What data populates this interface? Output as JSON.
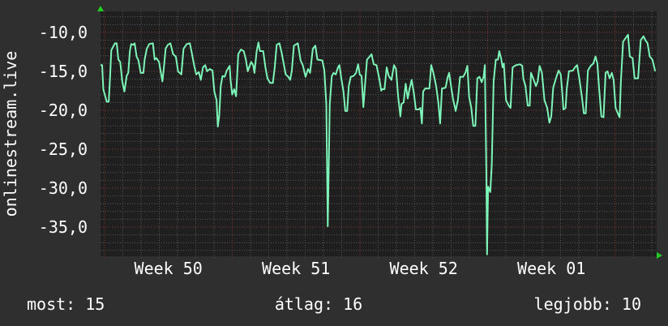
{
  "chart_data": {
    "type": "line",
    "title": "",
    "ylabel": "onlinestream.live",
    "xlabel": "",
    "x_unit": "days since start",
    "xlim": [
      0,
      30.49
    ],
    "ylim": [
      -38.75,
      -7.3
    ],
    "grid": true,
    "y_major_step": 5,
    "y_minor_step": 1,
    "x_week_start": 0.22,
    "yticks": [
      {
        "value": -10,
        "label": "-10,0"
      },
      {
        "value": -15,
        "label": "-15,0"
      },
      {
        "value": -20,
        "label": "-20,0"
      },
      {
        "value": -25,
        "label": "-25,0"
      },
      {
        "value": -30,
        "label": "-30,0"
      },
      {
        "value": -35,
        "label": "-35,0"
      }
    ],
    "xticks": [
      {
        "value": 3.72,
        "label": "Week 50"
      },
      {
        "value": 10.72,
        "label": "Week 51"
      },
      {
        "value": 17.72,
        "label": "Week 52"
      },
      {
        "value": 24.72,
        "label": "Week 01"
      }
    ],
    "colors": {
      "line": "#7ef5b8",
      "plot_bg": "#1f1f1f",
      "page_bg": "#2f2f2f",
      "minor_grid": "#5a5a5a",
      "major_grid": "#8a3a3a",
      "arrow": "#22cc22"
    },
    "series": [
      {
        "name": "onlinestream.live",
        "points": [
          [
            0.0,
            -14.2
          ],
          [
            0.09,
            -14.2
          ],
          [
            0.15,
            -17.3
          ],
          [
            0.27,
            -18.3
          ],
          [
            0.34,
            -18.9
          ],
          [
            0.45,
            -18.9
          ],
          [
            0.52,
            -15.9
          ],
          [
            0.59,
            -12.3
          ],
          [
            0.79,
            -11.4
          ],
          [
            0.89,
            -11.4
          ],
          [
            0.98,
            -13.5
          ],
          [
            1.08,
            -13.8
          ],
          [
            1.19,
            -16.3
          ],
          [
            1.31,
            -17.6
          ],
          [
            1.43,
            -15.6
          ],
          [
            1.52,
            -15.2
          ],
          [
            1.61,
            -12.4
          ],
          [
            1.68,
            -11.5
          ],
          [
            1.8,
            -11.6
          ],
          [
            1.87,
            -11.4
          ],
          [
            1.98,
            -13.1
          ],
          [
            2.08,
            -13.6
          ],
          [
            2.2,
            -15.2
          ],
          [
            2.35,
            -15.2
          ],
          [
            2.42,
            -13.5
          ],
          [
            2.54,
            -12.1
          ],
          [
            2.67,
            -11.5
          ],
          [
            2.87,
            -11.4
          ],
          [
            2.97,
            -13.5
          ],
          [
            3.06,
            -13.3
          ],
          [
            3.21,
            -13.8
          ],
          [
            3.31,
            -15.2
          ],
          [
            3.39,
            -16.3
          ],
          [
            3.46,
            -14.9
          ],
          [
            3.57,
            -12.1
          ],
          [
            3.69,
            -11.6
          ],
          [
            3.83,
            -11.4
          ],
          [
            3.98,
            -12.8
          ],
          [
            4.13,
            -13.1
          ],
          [
            4.25,
            -15.0
          ],
          [
            4.43,
            -15.4
          ],
          [
            4.55,
            -12.1
          ],
          [
            4.73,
            -11.5
          ],
          [
            4.9,
            -11.4
          ],
          [
            5.02,
            -12.8
          ],
          [
            5.13,
            -14.2
          ],
          [
            5.25,
            -15.4
          ],
          [
            5.39,
            -15.1
          ],
          [
            5.5,
            -16.1
          ],
          [
            5.62,
            -14.5
          ],
          [
            5.74,
            -14.2
          ],
          [
            5.84,
            -15.0
          ],
          [
            5.99,
            -14.7
          ],
          [
            6.14,
            -14.9
          ],
          [
            6.24,
            -17.6
          ],
          [
            6.36,
            -18.7
          ],
          [
            6.43,
            -22.1
          ],
          [
            6.51,
            -20.6
          ],
          [
            6.59,
            -16.9
          ],
          [
            6.69,
            -15.6
          ],
          [
            6.81,
            -15.7
          ],
          [
            6.92,
            -14.9
          ],
          [
            7.08,
            -14.3
          ],
          [
            7.13,
            -16.1
          ],
          [
            7.22,
            -18.0
          ],
          [
            7.33,
            -17.3
          ],
          [
            7.43,
            -18.2
          ],
          [
            7.55,
            -12.8
          ],
          [
            7.7,
            -12.2
          ],
          [
            7.85,
            -12.4
          ],
          [
            7.97,
            -13.5
          ],
          [
            8.07,
            -15.0
          ],
          [
            8.26,
            -13.8
          ],
          [
            8.37,
            -14.2
          ],
          [
            8.44,
            -15.2
          ],
          [
            8.56,
            -12.4
          ],
          [
            8.66,
            -11.3
          ],
          [
            8.74,
            -12.4
          ],
          [
            8.92,
            -12.4
          ],
          [
            9.04,
            -14.5
          ],
          [
            9.15,
            -15.9
          ],
          [
            9.3,
            -16.5
          ],
          [
            9.45,
            -16.5
          ],
          [
            9.55,
            -14.5
          ],
          [
            9.66,
            -11.6
          ],
          [
            9.81,
            -11.4
          ],
          [
            9.93,
            -12.6
          ],
          [
            10.04,
            -14.0
          ],
          [
            10.15,
            -15.4
          ],
          [
            10.3,
            -15.7
          ],
          [
            10.4,
            -16.1
          ],
          [
            10.49,
            -14.9
          ],
          [
            10.6,
            -11.7
          ],
          [
            10.82,
            -11.4
          ],
          [
            10.97,
            -13.6
          ],
          [
            11.09,
            -14.2
          ],
          [
            11.24,
            -15.7
          ],
          [
            11.38,
            -14.7
          ],
          [
            11.49,
            -15.2
          ],
          [
            11.64,
            -12.1
          ],
          [
            11.78,
            -11.7
          ],
          [
            11.89,
            -13.5
          ],
          [
            12.16,
            -13.6
          ],
          [
            12.27,
            -14.9
          ],
          [
            12.38,
            -19.2
          ],
          [
            12.46,
            -34.9
          ],
          [
            12.57,
            -19.2
          ],
          [
            12.68,
            -15.6
          ],
          [
            12.78,
            -15.2
          ],
          [
            12.9,
            -15.4
          ],
          [
            13.02,
            -14.5
          ],
          [
            13.1,
            -14.2
          ],
          [
            13.2,
            -15.9
          ],
          [
            13.32,
            -17.6
          ],
          [
            13.42,
            -20.1
          ],
          [
            13.52,
            -20.1
          ],
          [
            13.61,
            -16.9
          ],
          [
            13.72,
            -15.7
          ],
          [
            13.87,
            -15.6
          ],
          [
            14.01,
            -15.2
          ],
          [
            14.12,
            -14.1
          ],
          [
            14.21,
            -15.4
          ],
          [
            14.31,
            -15.6
          ],
          [
            14.41,
            -19.6
          ],
          [
            14.53,
            -15.9
          ],
          [
            14.61,
            -13.5
          ],
          [
            14.76,
            -13.1
          ],
          [
            14.86,
            -12.8
          ],
          [
            14.98,
            -14.1
          ],
          [
            15.13,
            -14.2
          ],
          [
            15.28,
            -15.9
          ],
          [
            15.39,
            -17.5
          ],
          [
            15.43,
            -17.3
          ],
          [
            15.57,
            -17.3
          ],
          [
            15.69,
            -14.5
          ],
          [
            15.8,
            -15.6
          ],
          [
            15.95,
            -16.1
          ],
          [
            16.09,
            -14.2
          ],
          [
            16.2,
            -14.7
          ],
          [
            16.32,
            -18.3
          ],
          [
            16.44,
            -20.8
          ],
          [
            16.5,
            -19.2
          ],
          [
            16.62,
            -19.0
          ],
          [
            16.73,
            -16.6
          ],
          [
            16.84,
            -18.5
          ],
          [
            16.94,
            -17.3
          ],
          [
            17.06,
            -16.1
          ],
          [
            17.18,
            -17.8
          ],
          [
            17.29,
            -19.9
          ],
          [
            17.43,
            -19.9
          ],
          [
            17.54,
            -19.7
          ],
          [
            17.62,
            -21.7
          ],
          [
            17.69,
            -17.6
          ],
          [
            17.8,
            -17.2
          ],
          [
            18.03,
            -17.2
          ],
          [
            18.13,
            -14.2
          ],
          [
            18.25,
            -15.2
          ],
          [
            18.4,
            -16.9
          ],
          [
            18.52,
            -19.0
          ],
          [
            18.62,
            -21.7
          ],
          [
            18.72,
            -17.2
          ],
          [
            18.92,
            -17.1
          ],
          [
            19.02,
            -15.9
          ],
          [
            19.11,
            -15.2
          ],
          [
            19.22,
            -16.9
          ],
          [
            19.32,
            -18.5
          ],
          [
            19.47,
            -20.1
          ],
          [
            19.59,
            -18.7
          ],
          [
            19.71,
            -15.7
          ],
          [
            19.88,
            -15.7
          ],
          [
            20.0,
            -15.2
          ],
          [
            20.11,
            -14.3
          ],
          [
            20.21,
            -18.3
          ],
          [
            20.33,
            -19.7
          ],
          [
            20.43,
            -22.0
          ],
          [
            20.55,
            -22.0
          ],
          [
            20.66,
            -15.9
          ],
          [
            20.78,
            -15.7
          ],
          [
            20.9,
            -16.4
          ],
          [
            21.0,
            -15.7
          ],
          [
            21.07,
            -14.2
          ],
          [
            21.15,
            -27.7
          ],
          [
            21.19,
            -38.5
          ],
          [
            21.25,
            -29.8
          ],
          [
            21.37,
            -30.5
          ],
          [
            21.45,
            -27.0
          ],
          [
            21.55,
            -16.3
          ],
          [
            21.67,
            -13.5
          ],
          [
            21.79,
            -13.5
          ],
          [
            21.86,
            -12.4
          ],
          [
            21.97,
            -13.4
          ],
          [
            22.04,
            -14.5
          ],
          [
            22.11,
            -14.0
          ],
          [
            22.23,
            -18.7
          ],
          [
            22.38,
            -19.4
          ],
          [
            22.48,
            -19.7
          ],
          [
            22.59,
            -14.5
          ],
          [
            22.78,
            -14.2
          ],
          [
            23.0,
            -14.1
          ],
          [
            23.12,
            -14.3
          ],
          [
            23.18,
            -15.9
          ],
          [
            23.3,
            -16.9
          ],
          [
            23.42,
            -19.4
          ],
          [
            23.53,
            -19.4
          ],
          [
            23.6,
            -15.2
          ],
          [
            23.72,
            -15.9
          ],
          [
            23.87,
            -16.9
          ],
          [
            23.97,
            -16.3
          ],
          [
            24.07,
            -14.3
          ],
          [
            24.2,
            -15.2
          ],
          [
            24.34,
            -18.7
          ],
          [
            24.49,
            -19.7
          ],
          [
            24.61,
            -21.6
          ],
          [
            24.71,
            -20.8
          ],
          [
            24.82,
            -17.1
          ],
          [
            24.97,
            -15.9
          ],
          [
            25.11,
            -14.9
          ],
          [
            25.23,
            -15.4
          ],
          [
            25.31,
            -17.6
          ],
          [
            25.38,
            -19.9
          ],
          [
            25.5,
            -19.7
          ],
          [
            25.56,
            -17.3
          ],
          [
            25.68,
            -15.0
          ],
          [
            25.9,
            -14.9
          ],
          [
            26.01,
            -14.5
          ],
          [
            26.13,
            -14.2
          ],
          [
            26.25,
            -15.9
          ],
          [
            26.39,
            -18.3
          ],
          [
            26.5,
            -20.4
          ],
          [
            26.6,
            -20.4
          ],
          [
            26.72,
            -14.9
          ],
          [
            26.87,
            -14.3
          ],
          [
            27.02,
            -14.0
          ],
          [
            27.14,
            -13.1
          ],
          [
            27.24,
            -14.0
          ],
          [
            27.34,
            -17.3
          ],
          [
            27.46,
            -20.8
          ],
          [
            27.58,
            -20.9
          ],
          [
            27.69,
            -15.2
          ],
          [
            27.79,
            -15.0
          ],
          [
            27.91,
            -15.9
          ],
          [
            28.03,
            -15.2
          ],
          [
            28.13,
            -16.1
          ],
          [
            28.24,
            -19.7
          ],
          [
            28.36,
            -20.4
          ],
          [
            28.46,
            -20.9
          ],
          [
            28.53,
            -16.3
          ],
          [
            28.65,
            -11.2
          ],
          [
            28.8,
            -10.7
          ],
          [
            28.92,
            -10.3
          ],
          [
            29.02,
            -13.1
          ],
          [
            29.17,
            -13.3
          ],
          [
            29.28,
            -15.9
          ],
          [
            29.47,
            -15.9
          ],
          [
            29.62,
            -11.0
          ],
          [
            29.77,
            -10.5
          ],
          [
            29.87,
            -11.0
          ],
          [
            29.99,
            -11.4
          ],
          [
            30.11,
            -13.1
          ],
          [
            30.26,
            -13.5
          ],
          [
            30.41,
            -15.0
          ]
        ]
      }
    ],
    "legend": {
      "current": "most: 15",
      "average": "átlag: 16",
      "best": "legjobb: 10"
    }
  }
}
